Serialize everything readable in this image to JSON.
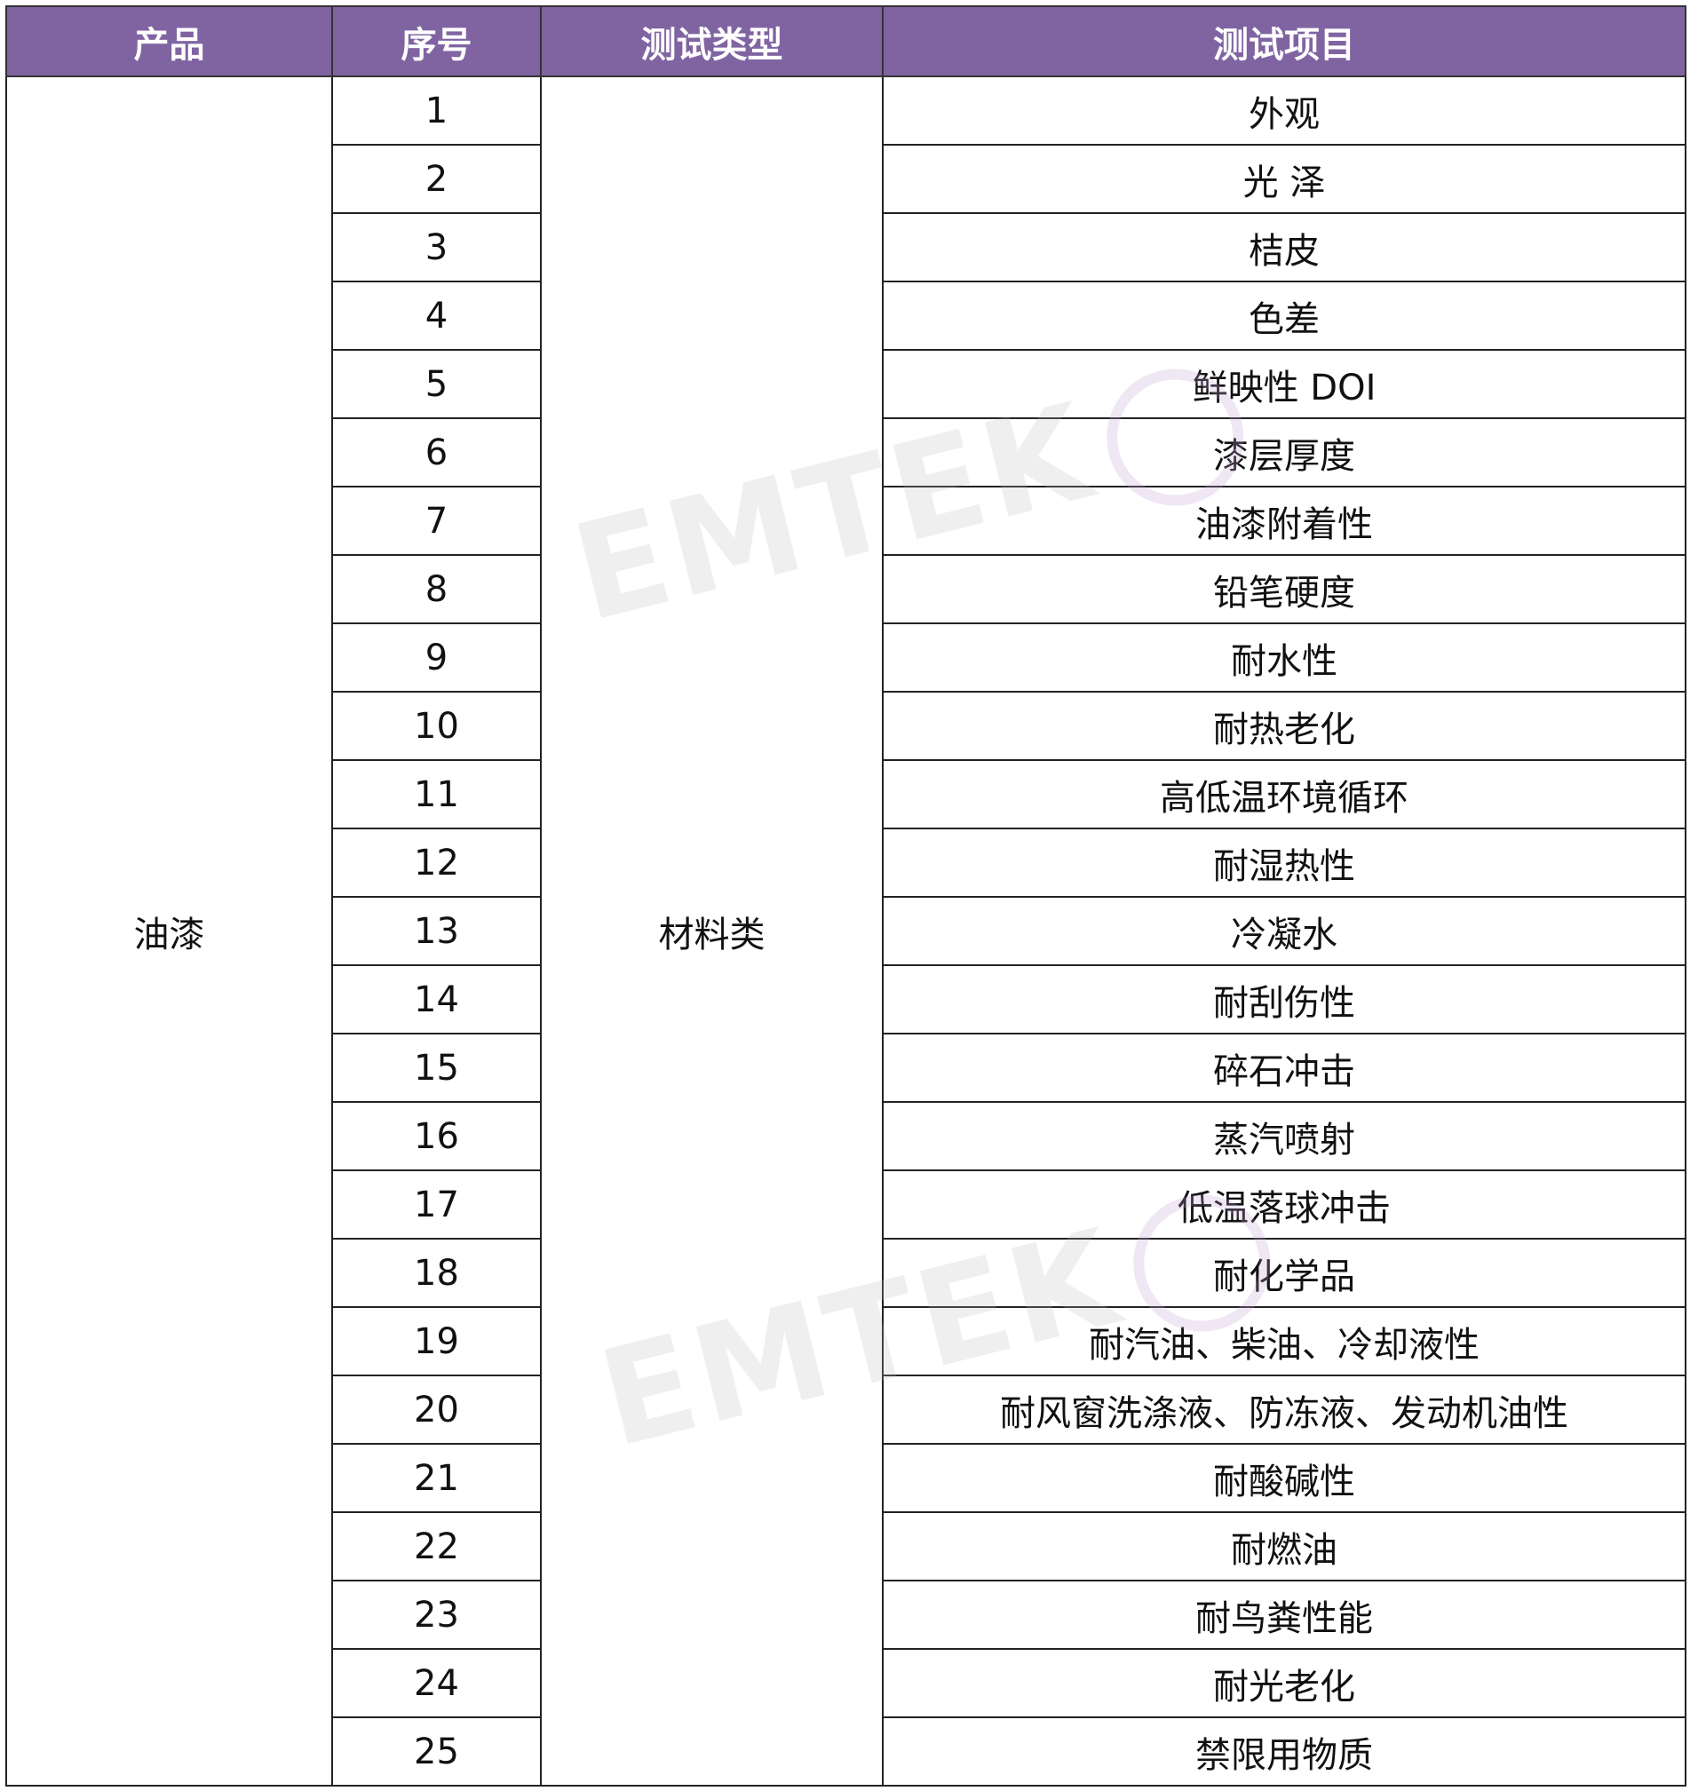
{
  "headers": [
    "产品",
    "序号",
    "测试类型",
    "测试项目"
  ],
  "product": "油漆",
  "test_type": "材料类",
  "watermark": "EMTEK",
  "header_color": "#8064a2",
  "rows": [
    {
      "no": "1",
      "item": "外观"
    },
    {
      "no": "2",
      "item": "光  泽"
    },
    {
      "no": "3",
      "item": "桔皮"
    },
    {
      "no": "4",
      "item": "色差"
    },
    {
      "no": "5",
      "item": "鲜映性  DOI"
    },
    {
      "no": "6",
      "item": "漆层厚度"
    },
    {
      "no": "7",
      "item": "油漆附着性"
    },
    {
      "no": "8",
      "item": "铅笔硬度"
    },
    {
      "no": "9",
      "item": "耐水性"
    },
    {
      "no": "10",
      "item": "耐热老化"
    },
    {
      "no": "11",
      "item": "高低温环境循环"
    },
    {
      "no": "12",
      "item": "耐湿热性"
    },
    {
      "no": "13",
      "item": "冷凝水"
    },
    {
      "no": "14",
      "item": "耐刮伤性"
    },
    {
      "no": "15",
      "item": "碎石冲击"
    },
    {
      "no": "16",
      "item": "蒸汽喷射"
    },
    {
      "no": "17",
      "item": "低温落球冲击"
    },
    {
      "no": "18",
      "item": "耐化学品"
    },
    {
      "no": "19",
      "item": "耐汽油、柴油、冷却液性"
    },
    {
      "no": "20",
      "item": "耐风窗洗涤液、防冻液、发动机油性"
    },
    {
      "no": "21",
      "item": "耐酸碱性"
    },
    {
      "no": "22",
      "item": "耐燃油"
    },
    {
      "no": "23",
      "item": "耐鸟粪性能"
    },
    {
      "no": "24",
      "item": "耐光老化"
    },
    {
      "no": "25",
      "item": "禁限用物质"
    }
  ]
}
